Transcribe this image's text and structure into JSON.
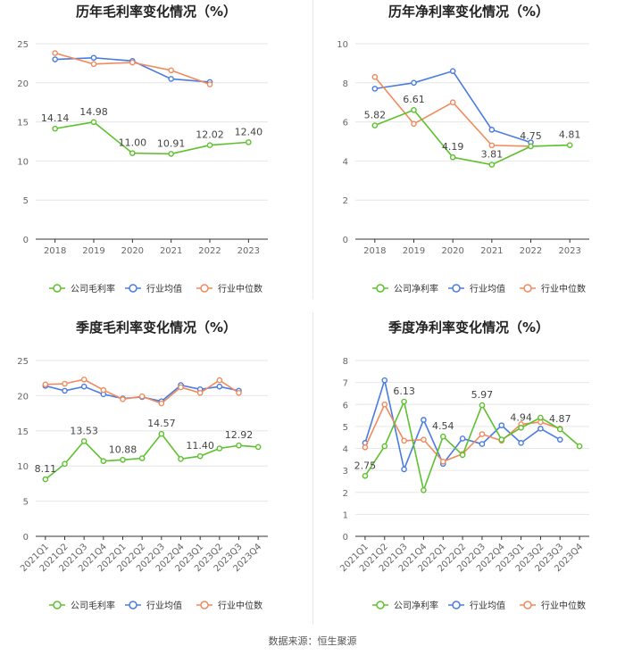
{
  "source_note": "数据来源：恒生聚源",
  "colors": {
    "company": "#5cc12d",
    "industry_avg": "#4a7be0",
    "industry_median": "#f08a5d",
    "grid": "#e6e6e6",
    "axis": "#333333",
    "label": "#444444"
  },
  "chart_data": [
    {
      "id": "annual-gross",
      "type": "line",
      "title": "历年毛利率变化情况（%）",
      "categories": [
        "2018",
        "2019",
        "2020",
        "2021",
        "2022",
        "2023"
      ],
      "ylim": [
        0,
        25
      ],
      "yticks": [
        0,
        5,
        10,
        15,
        20,
        25
      ],
      "series": [
        {
          "name": "公司毛利率",
          "key": "company",
          "values": [
            14.14,
            14.98,
            11.0,
            10.91,
            12.02,
            12.4
          ],
          "labels": [
            "14.14",
            "14.98",
            "11.00",
            "10.91",
            "12.02",
            "12.40"
          ]
        },
        {
          "name": "行业均值",
          "key": "industry_avg",
          "values": [
            23.0,
            23.2,
            22.8,
            20.5,
            20.1,
            null
          ]
        },
        {
          "name": "行业中位数",
          "key": "industry_median",
          "values": [
            23.8,
            22.4,
            22.6,
            21.6,
            19.8,
            null
          ]
        }
      ]
    },
    {
      "id": "annual-net",
      "type": "line",
      "title": "历年净利率变化情况（%）",
      "categories": [
        "2018",
        "2019",
        "2020",
        "2021",
        "2022",
        "2023"
      ],
      "ylim": [
        0,
        10
      ],
      "yticks": [
        0,
        2,
        4,
        6,
        8,
        10
      ],
      "series": [
        {
          "name": "公司净利率",
          "key": "company",
          "values": [
            5.82,
            6.61,
            4.19,
            3.81,
            4.75,
            4.81
          ],
          "labels": [
            "5.82",
            "6.61",
            "4.19",
            "3.81",
            "4.75",
            "4.81"
          ]
        },
        {
          "name": "行业均值",
          "key": "industry_avg",
          "values": [
            7.7,
            8.0,
            8.6,
            5.6,
            4.95,
            null
          ]
        },
        {
          "name": "行业中位数",
          "key": "industry_median",
          "values": [
            8.3,
            5.9,
            7.0,
            4.8,
            4.75,
            null
          ]
        }
      ]
    },
    {
      "id": "quarter-gross",
      "type": "line",
      "title": "季度毛利率变化情况（%）",
      "categories": [
        "2021Q1",
        "2021Q2",
        "2021Q3",
        "2021Q4",
        "2022Q1",
        "2022Q2",
        "2022Q3",
        "2022Q4",
        "2023Q1",
        "2023Q2",
        "2023Q3",
        "2023Q4"
      ],
      "ylim": [
        0,
        25
      ],
      "yticks": [
        0,
        5,
        10,
        15,
        20,
        25
      ],
      "series": [
        {
          "name": "公司毛利率",
          "key": "company",
          "values": [
            8.11,
            10.3,
            13.53,
            10.7,
            10.88,
            11.1,
            14.57,
            11.0,
            11.4,
            12.5,
            12.92,
            12.7
          ],
          "labels": [
            "8.11",
            "",
            "13.53",
            "",
            "10.88",
            "",
            "14.57",
            "",
            "11.40",
            "",
            "12.92",
            ""
          ]
        },
        {
          "name": "行业均值",
          "key": "industry_avg",
          "values": [
            21.4,
            20.7,
            21.3,
            20.2,
            19.6,
            19.8,
            19.2,
            21.5,
            20.9,
            21.3,
            20.7,
            null
          ]
        },
        {
          "name": "行业中位数",
          "key": "industry_median",
          "values": [
            21.6,
            21.7,
            22.3,
            20.8,
            19.5,
            19.9,
            18.9,
            21.2,
            20.4,
            22.2,
            20.4,
            null
          ]
        }
      ]
    },
    {
      "id": "quarter-net",
      "type": "line",
      "title": "季度净利率变化情况（%）",
      "categories": [
        "2021Q1",
        "2021Q2",
        "2021Q3",
        "2021Q4",
        "2022Q1",
        "2022Q2",
        "2022Q3",
        "2022Q4",
        "2023Q1",
        "2023Q2",
        "2023Q3",
        "2023Q4"
      ],
      "ylim": [
        0,
        8
      ],
      "yticks": [
        0,
        1,
        2,
        3,
        4,
        5,
        6,
        7,
        8
      ],
      "series": [
        {
          "name": "公司净利率",
          "key": "company",
          "values": [
            2.75,
            4.1,
            6.13,
            2.1,
            4.54,
            3.7,
            5.97,
            4.4,
            4.94,
            5.4,
            4.87,
            4.1
          ],
          "labels": [
            "2.75",
            "",
            "6.13",
            "",
            "4.54",
            "",
            "5.97",
            "",
            "4.94",
            "",
            "4.87",
            ""
          ]
        },
        {
          "name": "行业均值",
          "key": "industry_avg",
          "values": [
            4.25,
            7.1,
            3.05,
            5.3,
            3.3,
            4.45,
            4.2,
            5.05,
            4.25,
            4.9,
            4.4,
            null
          ]
        },
        {
          "name": "行业中位数",
          "key": "industry_median",
          "values": [
            4.05,
            6.0,
            4.35,
            4.4,
            3.4,
            3.75,
            4.65,
            4.35,
            5.1,
            5.2,
            4.9,
            null
          ]
        }
      ]
    }
  ]
}
